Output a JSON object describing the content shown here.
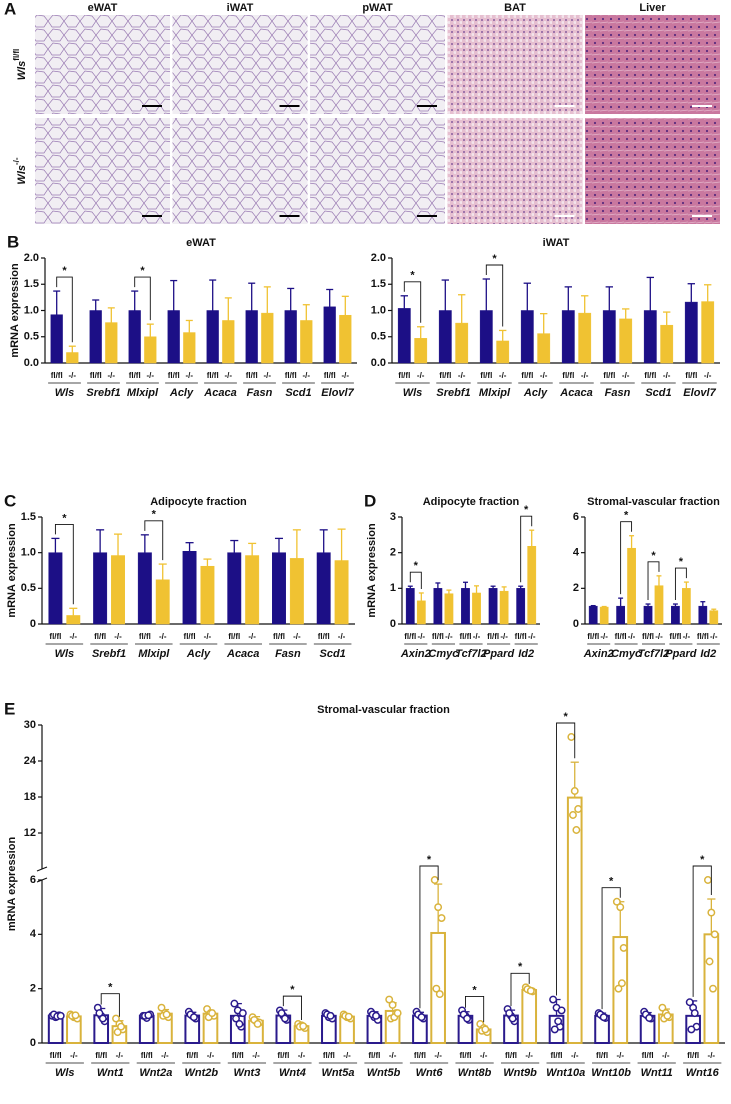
{
  "panel_a": {
    "panel": "A",
    "columns": [
      "eWAT",
      "iWAT",
      "pWAT",
      "BAT",
      "Liver"
    ],
    "rows": [
      {
        "gene": "Wls",
        "genotype": "fl/fl"
      },
      {
        "gene": "Wls",
        "genotype": "-/-"
      }
    ]
  },
  "chart_data": [
    {
      "type": "bar",
      "panel": "B",
      "title": "eWAT",
      "ylabel": "mRNA expression",
      "categories": [
        "Wls",
        "Srebf1",
        "Mlxipl",
        "Acly",
        "Acaca",
        "Fasn",
        "Scd1",
        "Elovl7"
      ],
      "series": [
        {
          "name": "fl/fl",
          "color": "#1c0f86",
          "values": [
            0.92,
            1.0,
            1.0,
            1.0,
            1.0,
            1.0,
            1.0,
            1.07
          ],
          "errors": [
            0.45,
            0.2,
            0.37,
            0.57,
            0.58,
            0.52,
            0.42,
            0.33
          ]
        },
        {
          "name": "-/-",
          "color": "#f0c232",
          "values": [
            0.2,
            0.77,
            0.5,
            0.58,
            0.81,
            0.95,
            0.81,
            0.91
          ],
          "errors": [
            0.12,
            0.28,
            0.24,
            0.23,
            0.43,
            0.5,
            0.3,
            0.36
          ]
        }
      ],
      "ylim": [
        0,
        2
      ],
      "yticks": [
        {
          "value": 0,
          "label": "0.0"
        },
        0.5,
        {
          "value": 1,
          "label": "1.0"
        },
        1.5,
        {
          "value": 2,
          "label": "2.0"
        }
      ],
      "significance": {
        "label": "*",
        "categories": [
          0,
          2
        ]
      }
    },
    {
      "type": "bar",
      "title": "iWAT",
      "categories": [
        "Wls",
        "Srebf1",
        "Mlxipl",
        "Acly",
        "Acaca",
        "Fasn",
        "Scd1",
        "Elovl7"
      ],
      "series": [
        {
          "name": "fl/fl",
          "color": "#1c0f86",
          "values": [
            1.04,
            1.0,
            1.0,
            1.0,
            1.0,
            1.0,
            1.0,
            1.16
          ],
          "errors": [
            0.24,
            0.58,
            0.6,
            0.52,
            0.45,
            0.45,
            0.63,
            0.35
          ]
        },
        {
          "name": "-/-",
          "color": "#f0c232",
          "values": [
            0.47,
            0.76,
            0.42,
            0.56,
            0.95,
            0.84,
            0.72,
            1.17
          ],
          "errors": [
            0.22,
            0.54,
            0.2,
            0.38,
            0.33,
            0.19,
            0.25,
            0.32
          ]
        }
      ],
      "ylim": [
        0,
        2
      ],
      "yticks": [
        {
          "value": 0,
          "label": "0.0"
        },
        0.5,
        {
          "value": 1,
          "label": "1.0"
        },
        1.5,
        {
          "value": 2,
          "label": "2.0"
        }
      ],
      "significance": {
        "label": "*",
        "categories": [
          0,
          2
        ]
      }
    },
    {
      "type": "bar",
      "panel": "C",
      "title": "Adipocyte fraction",
      "ylabel": "mRNA expression",
      "categories": [
        "Wls",
        "Srebf1",
        "Mlxipl",
        "Acly",
        "Acaca",
        "Fasn",
        "Scd1"
      ],
      "series": [
        {
          "name": "fl/fl",
          "color": "#1c0f86",
          "values": [
            1.0,
            1.0,
            1.0,
            1.02,
            1.0,
            1.0,
            1.0
          ],
          "errors": [
            0.2,
            0.32,
            0.25,
            0.12,
            0.17,
            0.2,
            0.32
          ]
        },
        {
          "name": "-/-",
          "color": "#f0c232",
          "values": [
            0.12,
            0.96,
            0.62,
            0.81,
            0.96,
            0.92,
            0.89
          ],
          "errors": [
            0.1,
            0.3,
            0.22,
            0.1,
            0.17,
            0.4,
            0.44
          ]
        }
      ],
      "ylim": [
        0,
        1.5
      ],
      "yticks": [
        0,
        0.5,
        {
          "value": 1,
          "label": "1.0"
        },
        1.5
      ],
      "significance": {
        "label": "*",
        "categories": [
          0,
          2
        ]
      }
    },
    {
      "type": "bar",
      "panel": "D",
      "title": "Adipocyte fraction",
      "ylabel": "mRNA expression",
      "categories": [
        "Axin2",
        "Cmyc",
        "Tcf7l2",
        "Ppard",
        "Id2"
      ],
      "series": [
        {
          "name": "fl/fl",
          "color": "#1c0f86",
          "values": [
            1.0,
            1.0,
            1.0,
            1.0,
            1.0
          ],
          "errors": [
            0.06,
            0.15,
            0.17,
            0.06,
            0.06
          ]
        },
        {
          "name": "-/-",
          "color": "#f0c232",
          "values": [
            0.65,
            0.85,
            0.87,
            0.92,
            2.18
          ],
          "errors": [
            0.22,
            0.1,
            0.2,
            0.12,
            0.45
          ]
        }
      ],
      "ylim": [
        0,
        3
      ],
      "yticks": [
        0,
        1,
        2,
        3
      ],
      "significance": {
        "label": "*",
        "categories": [
          0,
          4
        ]
      }
    },
    {
      "type": "bar",
      "title": "Stromal-vascular fraction",
      "categories": [
        "Axin2",
        "Cmyc",
        "Tcf7l2",
        "Ppard",
        "Id2"
      ],
      "series": [
        {
          "name": "fl/fl",
          "color": "#1c0f86",
          "values": [
            1.0,
            1.0,
            1.0,
            1.0,
            1.0
          ],
          "errors": [
            0.03,
            0.45,
            0.12,
            0.12,
            0.25
          ]
        },
        {
          "name": "-/-",
          "color": "#f0c232",
          "values": [
            0.95,
            4.25,
            2.15,
            2.0,
            0.75
          ],
          "errors": [
            0.03,
            0.7,
            0.55,
            0.35,
            0.08
          ]
        }
      ],
      "ylim": [
        0,
        6
      ],
      "yticks": [
        0,
        2,
        4,
        6
      ],
      "significance": {
        "label": "*",
        "categories": [
          1,
          2,
          3
        ]
      }
    },
    {
      "type": "dotbar",
      "panel": "E",
      "title": "Stromal-vascular fraction",
      "ylabel": "mRNA expression",
      "categories": [
        "Wls",
        "Wnt1",
        "Wnt2a",
        "Wnt2b",
        "Wnt3",
        "Wnt4",
        "Wnt5a",
        "Wnt5b",
        "Wnt6",
        "Wnt8b",
        "Wnt9b",
        "Wnt10a",
        "Wnt10b",
        "Wnt11",
        "Wnt16"
      ],
      "series": [
        {
          "name": "fl/fl",
          "color": "#2a1a8c",
          "values": [
            1.0,
            1.02,
            1.0,
            1.01,
            1.0,
            1.01,
            1.0,
            1.0,
            1.01,
            1.0,
            1.01,
            1.0,
            1.0,
            1.0,
            1.0
          ],
          "errors": [
            0.05,
            0.25,
            0.08,
            0.12,
            0.45,
            0.2,
            0.1,
            0.15,
            0.12,
            0.15,
            0.2,
            0.6,
            0.1,
            0.12,
            0.55
          ],
          "points": [
            [
              1.0,
              0.95,
              1.02,
              1.05,
              0.98,
              1.0
            ],
            [
              1.3,
              1.0,
              0.8,
              1.1,
              0.9
            ],
            [
              1.0,
              0.92,
              1.05,
              1.0,
              1.02
            ],
            [
              1.15,
              1.0,
              0.9,
              1.05,
              0.95
            ],
            [
              1.45,
              1.2,
              0.6,
              0.9,
              0.7,
              1.1
            ],
            [
              1.2,
              1.0,
              0.85,
              1.1,
              0.9
            ],
            [
              1.1,
              0.95,
              0.9,
              1.05,
              1.0
            ],
            [
              1.15,
              0.95,
              0.85,
              1.05,
              1.0
            ],
            [
              1.15,
              1.0,
              0.9,
              1.05,
              0.95
            ],
            [
              1.2,
              1.0,
              0.85,
              1.05,
              0.9
            ],
            [
              1.25,
              1.0,
              0.8,
              1.1,
              0.9
            ],
            [
              1.6,
              1.3,
              0.6,
              0.5,
              0.8,
              1.2
            ],
            [
              1.1,
              1.0,
              0.92,
              1.05,
              0.95
            ],
            [
              1.15,
              1.0,
              0.9,
              1.05,
              0.92
            ],
            [
              1.5,
              1.3,
              0.6,
              0.5,
              1.1
            ]
          ]
        },
        {
          "name": "-/-",
          "color": "#d9b33c",
          "values": [
            0.98,
            0.62,
            1.08,
            1.08,
            0.82,
            0.62,
            0.97,
            1.18,
            4.05,
            0.5,
            1.95,
            17.9,
            3.9,
            1.05,
            4.0
          ],
          "errors": [
            0.1,
            0.2,
            0.15,
            0.12,
            0.15,
            0.08,
            0.08,
            0.3,
            1.8,
            0.12,
            0.08,
            5.9,
            1.3,
            0.2,
            1.3
          ],
          "points": [
            [
              1.05,
              0.95,
              0.9,
              1.0,
              1.02
            ],
            [
              0.9,
              0.7,
              0.5,
              0.4,
              0.6
            ],
            [
              1.3,
              1.1,
              0.95,
              1.0,
              1.05
            ],
            [
              1.25,
              1.1,
              1.0,
              0.95,
              1.1
            ],
            [
              0.95,
              0.8,
              0.75,
              0.85,
              0.7
            ],
            [
              0.7,
              0.65,
              0.55,
              0.6,
              0.62
            ],
            [
              1.05,
              0.95,
              0.9,
              1.0,
              0.97
            ],
            [
              1.6,
              1.4,
              1.1,
              0.9,
              0.95,
              1.1
            ],
            [
              6.0,
              5.0,
              4.6,
              2.0,
              1.8
            ],
            [
              0.7,
              0.55,
              0.4,
              0.45,
              0.5
            ],
            [
              2.05,
              1.95,
              1.9,
              1.98,
              1.92
            ],
            [
              28.0,
              19.0,
              16.0,
              15.0,
              12.5
            ],
            [
              5.2,
              5.0,
              3.5,
              2.0,
              2.2
            ],
            [
              1.3,
              1.1,
              0.95,
              0.9,
              1.0
            ],
            [
              6.0,
              4.8,
              4.0,
              3.0,
              2.0
            ]
          ]
        }
      ],
      "ylim": [
        0,
        30
      ],
      "ybreak": 6,
      "yticks": [
        0,
        2,
        4,
        6,
        12,
        18,
        24,
        30
      ],
      "significance": {
        "label": "*",
        "categories": [
          1,
          5,
          8,
          9,
          10,
          11,
          12,
          14
        ]
      }
    }
  ]
}
